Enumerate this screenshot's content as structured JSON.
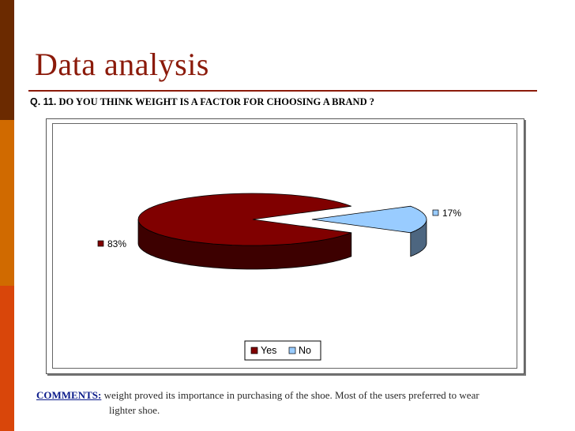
{
  "slide": {
    "title": "Data analysis",
    "question_number": "Q. 11.",
    "question_text": "DO YOU THINK WEIGHT IS A FACTOR FOR CHOOSING A BRAND  ?",
    "comments_label": "COMMENTS:",
    "comments_line1": "weight proved its importance in purchasing of the shoe. Most of the users preferred to wear",
    "comments_line2": "lighter shoe."
  },
  "colors": {
    "accent": "#8b1a0a",
    "stripe_top": "#6b2a00",
    "stripe_mid": "#d06a00",
    "stripe_bottom": "#d9460a",
    "yes_slice": "#800000",
    "no_slice": "#99ccff"
  },
  "chart_data": {
    "type": "pie",
    "style": "3d-exploded",
    "categories": [
      "Yes",
      "No"
    ],
    "values": [
      83,
      17
    ],
    "data_labels": [
      "83%",
      "17%"
    ],
    "legend_position": "bottom",
    "title": ""
  }
}
